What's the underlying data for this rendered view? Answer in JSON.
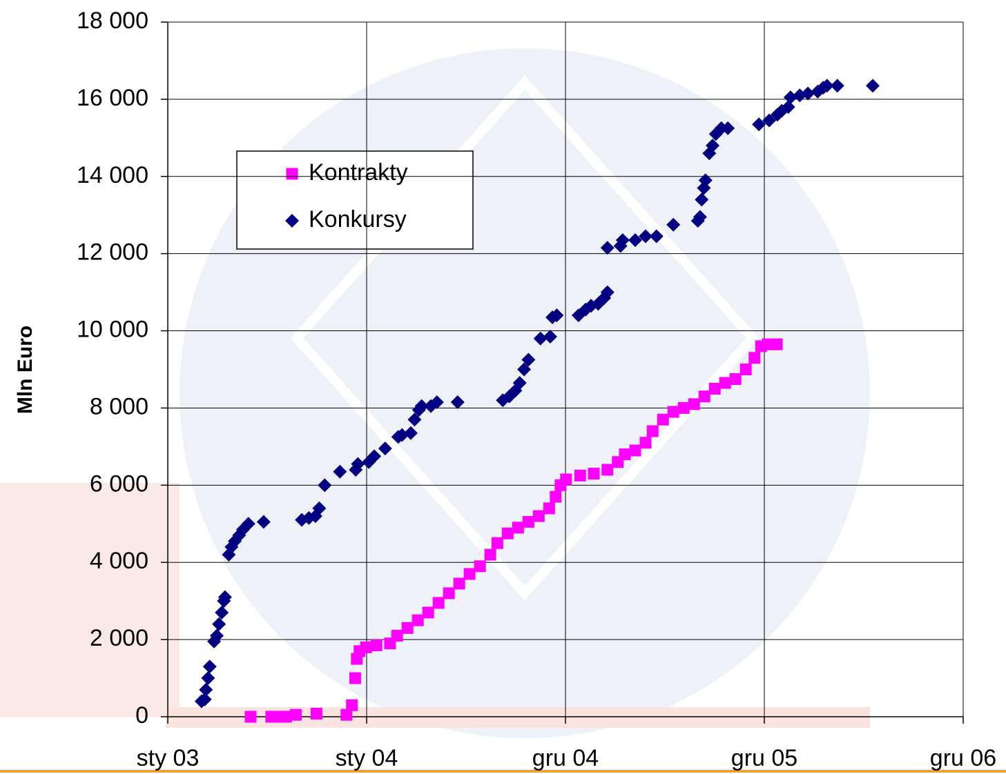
{
  "chart_data": {
    "type": "scatter",
    "y_label": "Mln Euro",
    "xlim": [
      37622,
      39082
    ],
    "xticks": [
      {
        "value": 37622,
        "label": "sty 03"
      },
      {
        "value": 37987,
        "label": "sty 04"
      },
      {
        "value": 38352,
        "label": "gru 04"
      },
      {
        "value": 38717,
        "label": "gru 05"
      },
      {
        "value": 39082,
        "label": "gru 06"
      }
    ],
    "ylim": [
      0,
      18000
    ],
    "yticks": [
      0,
      {
        "value": 2000,
        "label": "2 000"
      },
      {
        "value": 4000,
        "label": "4 000"
      },
      {
        "value": 6000,
        "label": "6 000"
      },
      {
        "value": 8000,
        "label": "8 000"
      },
      {
        "value": 10000,
        "label": "10 000"
      },
      {
        "value": 12000,
        "label": "12 000"
      },
      {
        "value": 14000,
        "label": "14 000"
      },
      {
        "value": 16000,
        "label": "16 000"
      },
      {
        "value": 18000,
        "label": "18 000"
      }
    ],
    "grid": true,
    "legend": "upper-left",
    "series": [
      {
        "name": "Kontrakty",
        "color": "#ff00ff",
        "marker": "square",
        "x": [
          37774,
          37812,
          37824,
          37839,
          37857,
          37895,
          37950,
          37960,
          37966,
          37969,
          37974,
          37986,
          38005,
          38030,
          38043,
          38062,
          38081,
          38100,
          38119,
          38138,
          38157,
          38176,
          38195,
          38214,
          38227,
          38246,
          38265,
          38284,
          38303,
          38322,
          38334,
          38343,
          38353,
          38379,
          38404,
          38429,
          38448,
          38461,
          38480,
          38499,
          38512,
          38531,
          38550,
          38569,
          38588,
          38607,
          38626,
          38645,
          38664,
          38683,
          38699,
          38711,
          38723,
          38740
        ],
        "values": [
          0,
          0,
          0,
          0,
          50,
          80,
          50,
          300,
          1000,
          1500,
          1700,
          1800,
          1850,
          1900,
          2100,
          2300,
          2500,
          2700,
          2950,
          3200,
          3450,
          3700,
          3900,
          4200,
          4500,
          4750,
          4900,
          5050,
          5200,
          5400,
          5700,
          6000,
          6150,
          6250,
          6300,
          6400,
          6600,
          6800,
          6900,
          7100,
          7400,
          7700,
          7900,
          8000,
          8100,
          8300,
          8500,
          8650,
          8750,
          9000,
          9300,
          9600,
          9650,
          9650
        ]
      },
      {
        "name": "Konkursy",
        "color": "#000080",
        "marker": "diamond",
        "x": [
          37684,
          37690,
          37692,
          37696,
          37699,
          37707,
          37712,
          37716,
          37721,
          37725,
          37727,
          37734,
          37739,
          37745,
          37753,
          37760,
          37770,
          37798,
          37868,
          37881,
          37893,
          37900,
          37910,
          37938,
          37967,
          37971,
          37991,
          38001,
          38021,
          38045,
          38052,
          38068,
          38075,
          38083,
          38088,
          38105,
          38116,
          38154,
          38237,
          38249,
          38260,
          38268,
          38276,
          38284,
          38306,
          38324,
          38328,
          38336,
          38376,
          38389,
          38399,
          38412,
          38423,
          38429,
          38429,
          38453,
          38457,
          38480,
          38499,
          38519,
          38550,
          38595,
          38599,
          38602,
          38606,
          38609,
          38616,
          38622,
          38628,
          38638,
          38650,
          38707,
          38726,
          38741,
          38749,
          38761,
          38765,
          38782,
          38797,
          38815,
          38825,
          38832,
          38851,
          38916
        ],
        "values": [
          400,
          450,
          700,
          1000,
          1300,
          1950,
          2100,
          2400,
          2700,
          3000,
          3100,
          4200,
          4400,
          4550,
          4700,
          4850,
          5000,
          5050,
          5100,
          5150,
          5200,
          5400,
          6000,
          6350,
          6400,
          6550,
          6600,
          6750,
          6950,
          7250,
          7300,
          7350,
          7700,
          7950,
          8050,
          8050,
          8150,
          8150,
          8200,
          8300,
          8450,
          8650,
          9000,
          9250,
          9800,
          9850,
          10350,
          10400,
          10400,
          10550,
          10650,
          10700,
          10850,
          11000,
          12150,
          12200,
          12350,
          12350,
          12450,
          12450,
          12750,
          12850,
          12950,
          13400,
          13700,
          13900,
          14600,
          14800,
          15100,
          15250,
          15250,
          15350,
          15450,
          15600,
          15700,
          15800,
          16050,
          16100,
          16150,
          16200,
          16300,
          16350,
          16350,
          16350
        ]
      }
    ]
  }
}
